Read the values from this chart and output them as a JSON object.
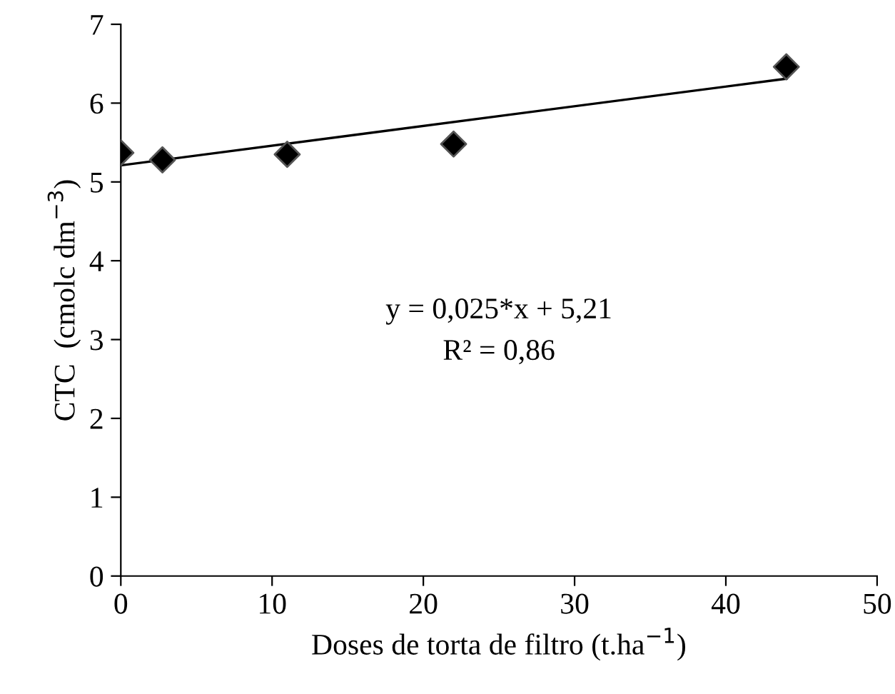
{
  "chart_data": {
    "type": "scatter",
    "xlabel": "Doses de torta de filtro (t.ha$^{−1}$)",
    "ylabel": "CTC  (cmolc dm$^{−3}$)",
    "series": [
      {
        "color": "#000000",
        "marker": "diamond",
        "x": [
          0,
          2.75,
          11,
          22,
          44
        ],
        "values": [
          5.37,
          5.28,
          5.35,
          5.48,
          6.46
        ]
      },
      {
        "type": "line",
        "color": "#000000",
        "marker": "none",
        "line_style": "solid",
        "x": [
          0,
          44
        ],
        "values": [
          5.21,
          6.31
        ]
      }
    ],
    "xlim": [
      0,
      50
    ],
    "xticks": [
      0,
      10,
      20,
      30,
      40,
      50
    ],
    "ylim": [
      0,
      7
    ],
    "yticks": [
      0,
      1,
      2,
      3,
      4,
      5,
      6,
      7
    ],
    "grid": false,
    "legend": false,
    "annotations": [
      "y = 0,025*x + 5,21",
      "R² = 0,86"
    ]
  }
}
